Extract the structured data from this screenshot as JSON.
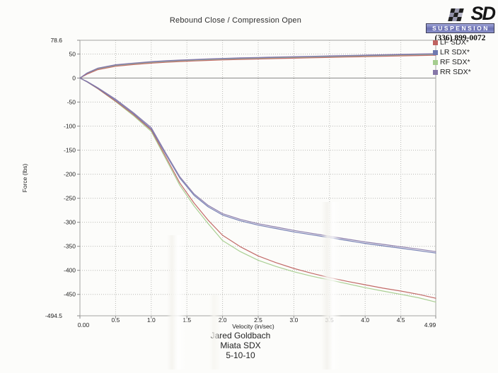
{
  "logo": {
    "brand": "SD",
    "tagline": "SUSPENSION",
    "phone": "(336) 899-0072"
  },
  "footer": {
    "lines": [
      "Jared Goldbach",
      "Miata SDX",
      "5-10-10"
    ]
  },
  "chart_data": {
    "type": "line",
    "title": "Rebound Close / Compression Open",
    "xlabel": "Velocity (in/sec)",
    "ylabel": "Force (lbs)",
    "xlim": [
      0,
      4.99
    ],
    "ylim": [
      -494.5,
      78.6
    ],
    "grid": true,
    "legend_position": "top-right",
    "x_tick_values": [
      0,
      0.5,
      1,
      1.5,
      2,
      2.5,
      3,
      3.5,
      4,
      4.5,
      4.99
    ],
    "x_tick_labels": [
      "0.00",
      "0.5",
      "1.0",
      "1.5",
      "2.0",
      "2.5",
      "3.0",
      "3.5",
      "4.0",
      "4.5",
      "4.99"
    ],
    "y_tick_values": [
      78.6,
      50,
      0,
      -50,
      -100,
      -150,
      -200,
      -250,
      -300,
      -350,
      -400,
      -450,
      -494.5
    ],
    "y_tick_labels": [
      "78.6",
      "50",
      "0",
      "-50",
      "-100",
      "-150",
      "-200",
      "-250",
      "-300",
      "-350",
      "-400",
      "-450",
      "-494.5"
    ],
    "x": [
      0,
      0.1,
      0.25,
      0.5,
      0.75,
      1.0,
      1.2,
      1.4,
      1.6,
      1.8,
      2.0,
      2.25,
      2.5,
      2.75,
      3.0,
      3.25,
      3.5,
      3.75,
      4.0,
      4.25,
      4.5,
      4.75,
      4.99
    ],
    "series": [
      {
        "name": "LF SDX*",
        "color": "#bf6260",
        "rebound": [
          0,
          8,
          17.5,
          24.5,
          28,
          31,
          32.8,
          34.3,
          35.5,
          36.7,
          37.7,
          38.8,
          39.7,
          40.5,
          41.3,
          42.1,
          42.9,
          43.7,
          44.5,
          45.3,
          46.1,
          46.9,
          47.5
        ],
        "compression": [
          0,
          -8,
          -22,
          -48,
          -76,
          -108,
          -163,
          -218,
          -260,
          -296,
          -327,
          -351,
          -370,
          -384,
          -396,
          -406,
          -415,
          -423,
          -430,
          -437,
          -443,
          -450,
          -458
        ]
      },
      {
        "name": "LR SDX*",
        "color": "#6f79b0",
        "rebound": [
          0,
          10,
          20,
          27,
          30.5,
          33.5,
          35.3,
          36.8,
          38,
          39.2,
          40.2,
          41.3,
          42.2,
          43,
          43.8,
          44.6,
          45.4,
          46.2,
          47,
          47.8,
          48.6,
          49.4,
          50
        ],
        "compression": [
          0,
          -8,
          -21,
          -46,
          -74,
          -106,
          -158,
          -208,
          -244,
          -268,
          -285,
          -297,
          -306,
          -313,
          -320,
          -326,
          -332,
          -338,
          -344,
          -349,
          -354,
          -359,
          -364
        ]
      },
      {
        "name": "RF SDX*",
        "color": "#a5cd8e",
        "rebound": [
          0,
          9,
          18.8,
          25.8,
          29.3,
          32.3,
          34.1,
          35.6,
          36.8,
          38,
          39,
          40.1,
          41,
          41.8,
          42.6,
          43.4,
          44.2,
          45,
          45.8,
          46.6,
          47.4,
          48.2,
          48.8
        ],
        "compression": [
          0,
          -8,
          -22,
          -49,
          -78,
          -111,
          -167,
          -223,
          -266,
          -303,
          -338,
          -361,
          -379,
          -392,
          -403,
          -412,
          -420,
          -428,
          -436,
          -443,
          -450,
          -457,
          -466
        ]
      },
      {
        "name": "RR SDX*",
        "color": "#8677a8",
        "rebound": [
          0,
          10.5,
          20.5,
          27.7,
          31.2,
          34.2,
          36,
          37.5,
          38.7,
          39.9,
          40.9,
          42,
          42.9,
          43.7,
          44.5,
          45.3,
          46.1,
          46.9,
          47.7,
          48.5,
          49.3,
          50.1,
          50.7
        ],
        "compression": [
          0,
          -7,
          -20,
          -44,
          -72,
          -103,
          -155,
          -205,
          -241,
          -265,
          -282,
          -294,
          -303,
          -310,
          -317,
          -323,
          -329,
          -335,
          -341,
          -346,
          -351,
          -356,
          -361
        ]
      }
    ]
  }
}
